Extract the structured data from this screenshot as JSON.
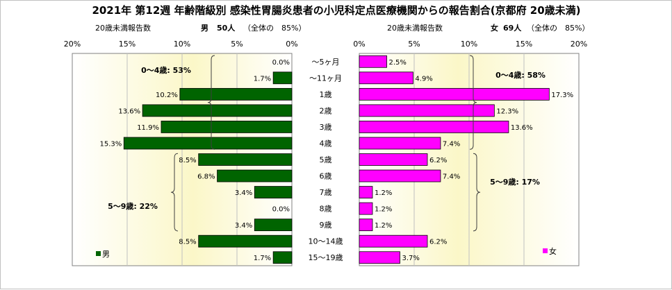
{
  "title": "2021年 第12週 年齢階級別 感染性胃腸炎患者の小児科定点医療機関からの報告割合(京都府 20歳未満)",
  "colors": {
    "male": "#006400",
    "female": "#ff00ff",
    "grid": "#c0c0c0"
  },
  "left_panel": {
    "header_left": "20歳未満報告数",
    "header_sex": "男",
    "header_count": "50人",
    "header_share": "（全体の　85%）",
    "legend": "男"
  },
  "right_panel": {
    "header_left": "20歳未満報告数",
    "header_sex": "女",
    "header_count": "69人",
    "header_share": "（全体の　85%）",
    "legend": "女"
  },
  "chart_data": {
    "type": "bar",
    "orientation": "horizontal",
    "layout": "population-pyramid",
    "categories": [
      "～5ヶ月",
      "～11ヶ月",
      "1歳",
      "2歳",
      "3歳",
      "4歳",
      "5歳",
      "6歳",
      "7歳",
      "8歳",
      "9歳",
      "10～14歳",
      "15～19歳"
    ],
    "series": [
      {
        "name": "男",
        "values": [
          0.0,
          1.7,
          10.2,
          13.6,
          11.9,
          15.3,
          8.5,
          6.8,
          3.4,
          0.0,
          3.4,
          8.5,
          1.7
        ],
        "labels": [
          "0.0%",
          "1.7%",
          "10.2%",
          "13.6%",
          "11.9%",
          "15.3%",
          "8.5%",
          "6.8%",
          "3.4%",
          "0.0%",
          "3.4%",
          "8.5%",
          "1.7%"
        ]
      },
      {
        "name": "女",
        "values": [
          2.5,
          4.9,
          17.3,
          12.3,
          13.6,
          7.4,
          6.2,
          7.4,
          1.2,
          1.2,
          1.2,
          6.2,
          3.7
        ],
        "labels": [
          "2.5%",
          "4.9%",
          "17.3%",
          "12.3%",
          "13.6%",
          "7.4%",
          "6.2%",
          "7.4%",
          "1.2%",
          "1.2%",
          "1.2%",
          "6.2%",
          "3.7%"
        ]
      }
    ],
    "xlim": [
      0,
      20
    ],
    "xticks": [
      "0%",
      "5%",
      "10%",
      "15%",
      "20%"
    ],
    "grid": true,
    "group_annotations": {
      "male": [
        {
          "text": "0～4歳: 53%",
          "from": 0,
          "to": 5
        },
        {
          "text": "5～9歳: 22%",
          "from": 6,
          "to": 10
        }
      ],
      "female": [
        {
          "text": "0～4歳: 58%",
          "from": 0,
          "to": 5
        },
        {
          "text": "5～9歳: 17%",
          "from": 6,
          "to": 10
        }
      ]
    }
  }
}
